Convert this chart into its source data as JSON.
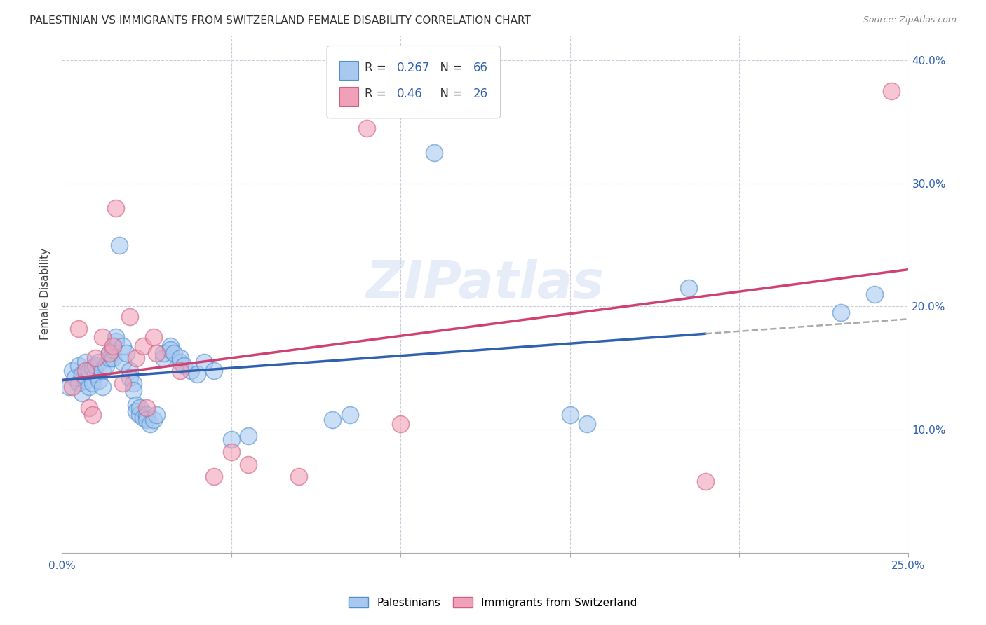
{
  "title": "PALESTINIAN VS IMMIGRANTS FROM SWITZERLAND FEMALE DISABILITY CORRELATION CHART",
  "source": "Source: ZipAtlas.com",
  "ylabel": "Female Disability",
  "xlim": [
    0.0,
    0.25
  ],
  "ylim": [
    0.0,
    0.42
  ],
  "xticks": [
    0.0,
    0.05,
    0.1,
    0.15,
    0.2,
    0.25
  ],
  "yticks": [
    0.1,
    0.2,
    0.3,
    0.4
  ],
  "r_blue": 0.267,
  "n_blue": 66,
  "r_pink": 0.46,
  "n_pink": 26,
  "blue_fill": "#A8C8F0",
  "pink_fill": "#F0A0B8",
  "blue_edge": "#5090D0",
  "pink_edge": "#D06080",
  "blue_line": "#3060B0",
  "pink_line": "#D04070",
  "dash_line": "#AAAAAA",
  "background_color": "#FFFFFF",
  "grid_color": "#CCCCDD",
  "watermark": "ZIPatlas",
  "blue_scatter": [
    [
      0.002,
      0.135
    ],
    [
      0.003,
      0.148
    ],
    [
      0.004,
      0.142
    ],
    [
      0.005,
      0.138
    ],
    [
      0.005,
      0.152
    ],
    [
      0.006,
      0.13
    ],
    [
      0.006,
      0.145
    ],
    [
      0.007,
      0.14
    ],
    [
      0.007,
      0.155
    ],
    [
      0.008,
      0.148
    ],
    [
      0.008,
      0.135
    ],
    [
      0.009,
      0.15
    ],
    [
      0.009,
      0.138
    ],
    [
      0.01,
      0.145
    ],
    [
      0.01,
      0.152
    ],
    [
      0.011,
      0.14
    ],
    [
      0.011,
      0.155
    ],
    [
      0.012,
      0.148
    ],
    [
      0.012,
      0.135
    ],
    [
      0.013,
      0.152
    ],
    [
      0.014,
      0.158
    ],
    [
      0.014,
      0.162
    ],
    [
      0.015,
      0.158
    ],
    [
      0.015,
      0.165
    ],
    [
      0.016,
      0.172
    ],
    [
      0.016,
      0.175
    ],
    [
      0.017,
      0.25
    ],
    [
      0.018,
      0.168
    ],
    [
      0.018,
      0.155
    ],
    [
      0.019,
      0.162
    ],
    [
      0.02,
      0.148
    ],
    [
      0.02,
      0.142
    ],
    [
      0.021,
      0.138
    ],
    [
      0.021,
      0.132
    ],
    [
      0.022,
      0.12
    ],
    [
      0.022,
      0.115
    ],
    [
      0.023,
      0.112
    ],
    [
      0.023,
      0.118
    ],
    [
      0.024,
      0.11
    ],
    [
      0.025,
      0.112
    ],
    [
      0.025,
      0.108
    ],
    [
      0.026,
      0.105
    ],
    [
      0.027,
      0.108
    ],
    [
      0.028,
      0.112
    ],
    [
      0.03,
      0.158
    ],
    [
      0.03,
      0.162
    ],
    [
      0.032,
      0.168
    ],
    [
      0.032,
      0.165
    ],
    [
      0.033,
      0.162
    ],
    [
      0.035,
      0.155
    ],
    [
      0.035,
      0.158
    ],
    [
      0.036,
      0.152
    ],
    [
      0.038,
      0.148
    ],
    [
      0.04,
      0.145
    ],
    [
      0.042,
      0.155
    ],
    [
      0.045,
      0.148
    ],
    [
      0.05,
      0.092
    ],
    [
      0.055,
      0.095
    ],
    [
      0.08,
      0.108
    ],
    [
      0.085,
      0.112
    ],
    [
      0.11,
      0.325
    ],
    [
      0.15,
      0.112
    ],
    [
      0.155,
      0.105
    ],
    [
      0.185,
      0.215
    ],
    [
      0.23,
      0.195
    ],
    [
      0.24,
      0.21
    ]
  ],
  "pink_scatter": [
    [
      0.003,
      0.135
    ],
    [
      0.005,
      0.182
    ],
    [
      0.007,
      0.148
    ],
    [
      0.008,
      0.118
    ],
    [
      0.009,
      0.112
    ],
    [
      0.01,
      0.158
    ],
    [
      0.012,
      0.175
    ],
    [
      0.014,
      0.162
    ],
    [
      0.015,
      0.168
    ],
    [
      0.016,
      0.28
    ],
    [
      0.018,
      0.138
    ],
    [
      0.02,
      0.192
    ],
    [
      0.022,
      0.158
    ],
    [
      0.024,
      0.168
    ],
    [
      0.025,
      0.118
    ],
    [
      0.027,
      0.175
    ],
    [
      0.028,
      0.162
    ],
    [
      0.035,
      0.148
    ],
    [
      0.045,
      0.062
    ],
    [
      0.05,
      0.082
    ],
    [
      0.055,
      0.072
    ],
    [
      0.07,
      0.062
    ],
    [
      0.09,
      0.345
    ],
    [
      0.1,
      0.105
    ],
    [
      0.19,
      0.058
    ],
    [
      0.245,
      0.375
    ]
  ]
}
